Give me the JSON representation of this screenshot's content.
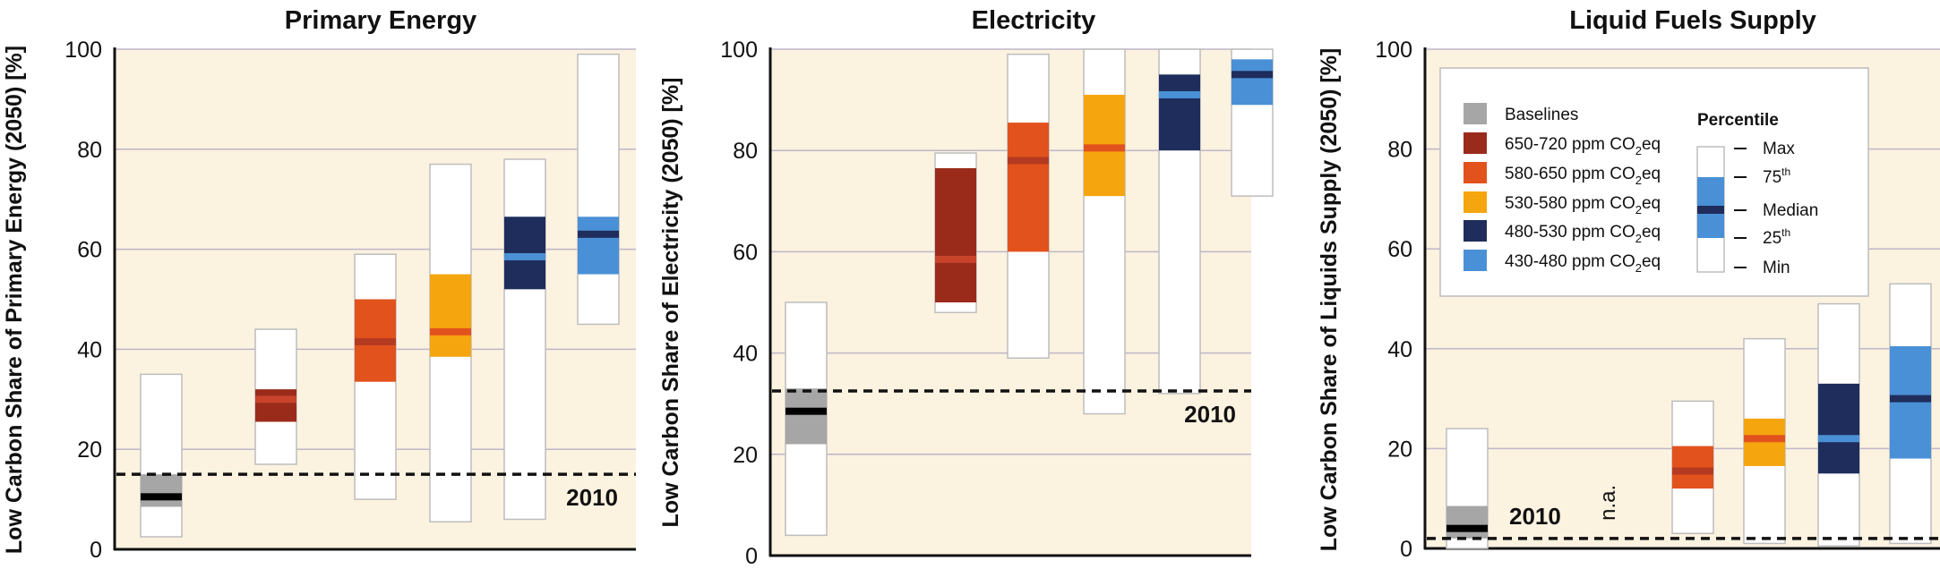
{
  "legend": {
    "items": [
      {
        "label": "Baselines",
        "color": "#a6a6a6"
      },
      {
        "label": "650-720 ppm CO",
        "sub": "2",
        "suffix": "eq",
        "color": "#9a2b1b",
        "median": "#c8432a"
      },
      {
        "label": "580-650 ppm CO",
        "sub": "2",
        "suffix": "eq",
        "color": "#e2521d",
        "median": "#b53a22"
      },
      {
        "label": "530-580 ppm CO",
        "sub": "2",
        "suffix": "eq",
        "color": "#f5a50e",
        "median": "#e2521d"
      },
      {
        "label": "480-530 ppm CO",
        "sub": "2",
        "suffix": "eq",
        "color": "#1f2d5c",
        "median": "#4a90d6"
      },
      {
        "label": "430-480 ppm CO",
        "sub": "2",
        "suffix": "eq",
        "color": "#4a90d6",
        "median": "#1f2d5c"
      }
    ],
    "percentile_title": "Percentile",
    "percentile": {
      "max": "Max",
      "p75": "75",
      "p75_sup": "th",
      "median": "Median",
      "p25": "25",
      "p25_sup": "th",
      "min": "Min"
    }
  },
  "chart_data": [
    {
      "type": "box",
      "title": "Primary Energy",
      "ylabel": "Low Carbon Share of Primary Energy (2050) [%]",
      "ylim": [
        0,
        100
      ],
      "yticks": [
        0,
        20,
        40,
        60,
        80,
        100
      ],
      "reference": {
        "label": "2010",
        "value": 15
      },
      "series": [
        {
          "name": "Baselines",
          "min": 2.5,
          "p25": 8.5,
          "median": 10.5,
          "p75": 15,
          "max": 35
        },
        {
          "name": "650-720 ppm CO2eq",
          "min": 17,
          "p25": 25.5,
          "median": 30,
          "p75": 32,
          "max": 44
        },
        {
          "name": "580-650 ppm CO2eq",
          "min": 10,
          "p25": 33.5,
          "median": 41.5,
          "p75": 50,
          "max": 59
        },
        {
          "name": "530-580 ppm CO2eq",
          "min": 5.5,
          "p25": 38.5,
          "median": 43.5,
          "p75": 55,
          "max": 77
        },
        {
          "name": "480-530 ppm CO2eq",
          "min": 6,
          "p25": 52,
          "median": 58.5,
          "p75": 66.5,
          "max": 78
        },
        {
          "name": "430-480 ppm CO2eq",
          "min": 45,
          "p25": 55,
          "median": 63,
          "p75": 66.5,
          "max": 99
        }
      ]
    },
    {
      "type": "box",
      "title": "Electricity",
      "ylabel": "Low Carbon Share of Electricity (2050) [%]",
      "ylim": [
        0,
        100
      ],
      "yticks": [
        0,
        20,
        40,
        60,
        80,
        100
      ],
      "reference": {
        "label": "2010",
        "value": 32.5
      },
      "series": [
        {
          "name": "Baselines",
          "min": 4,
          "p25": 22,
          "median": 28.5,
          "p75": 33,
          "max": 50
        },
        {
          "name": "650-720 ppm CO2eq",
          "min": 48,
          "p25": 50,
          "median": 58.5,
          "p75": 76.5,
          "max": 79.5
        },
        {
          "name": "580-650 ppm CO2eq",
          "min": 39,
          "p25": 60,
          "median": 78,
          "p75": 85.5,
          "max": 99
        },
        {
          "name": "530-580 ppm CO2eq",
          "min": 28,
          "p25": 71,
          "median": 80.5,
          "p75": 91,
          "max": 100
        },
        {
          "name": "480-530 ppm CO2eq",
          "min": 32,
          "p25": 80,
          "median": 91,
          "p75": 95,
          "max": 100
        },
        {
          "name": "430-480 ppm CO2eq",
          "min": 71,
          "p25": 89,
          "median": 95,
          "p75": 98,
          "max": 100
        }
      ]
    },
    {
      "type": "box",
      "title": "Liquid Fuels Supply",
      "ylabel": "Low Carbon Share of Liquids Supply (2050) [%]",
      "ylim": [
        0,
        100
      ],
      "yticks": [
        0,
        20,
        40,
        60,
        80,
        100
      ],
      "reference": {
        "label": "2010",
        "value": 2
      },
      "na_label": "n.a.",
      "series": [
        {
          "name": "Baselines",
          "min": 0,
          "p25": 2,
          "median": 4,
          "p75": 8.5,
          "max": 24
        },
        {
          "name": "650-720 ppm CO2eq",
          "na": true
        },
        {
          "name": "580-650 ppm CO2eq",
          "min": 3,
          "p25": 12,
          "median": 15.5,
          "p75": 20.5,
          "max": 29.5
        },
        {
          "name": "530-580 ppm CO2eq",
          "min": 1,
          "p25": 16.5,
          "median": 22,
          "p75": 26,
          "max": 42
        },
        {
          "name": "480-530 ppm CO2eq",
          "min": 0.5,
          "p25": 15,
          "median": 22,
          "p75": 33,
          "max": 49
        },
        {
          "name": "430-480 ppm CO2eq",
          "min": 1,
          "p25": 18,
          "median": 30,
          "p75": 40.5,
          "max": 53
        }
      ]
    }
  ]
}
